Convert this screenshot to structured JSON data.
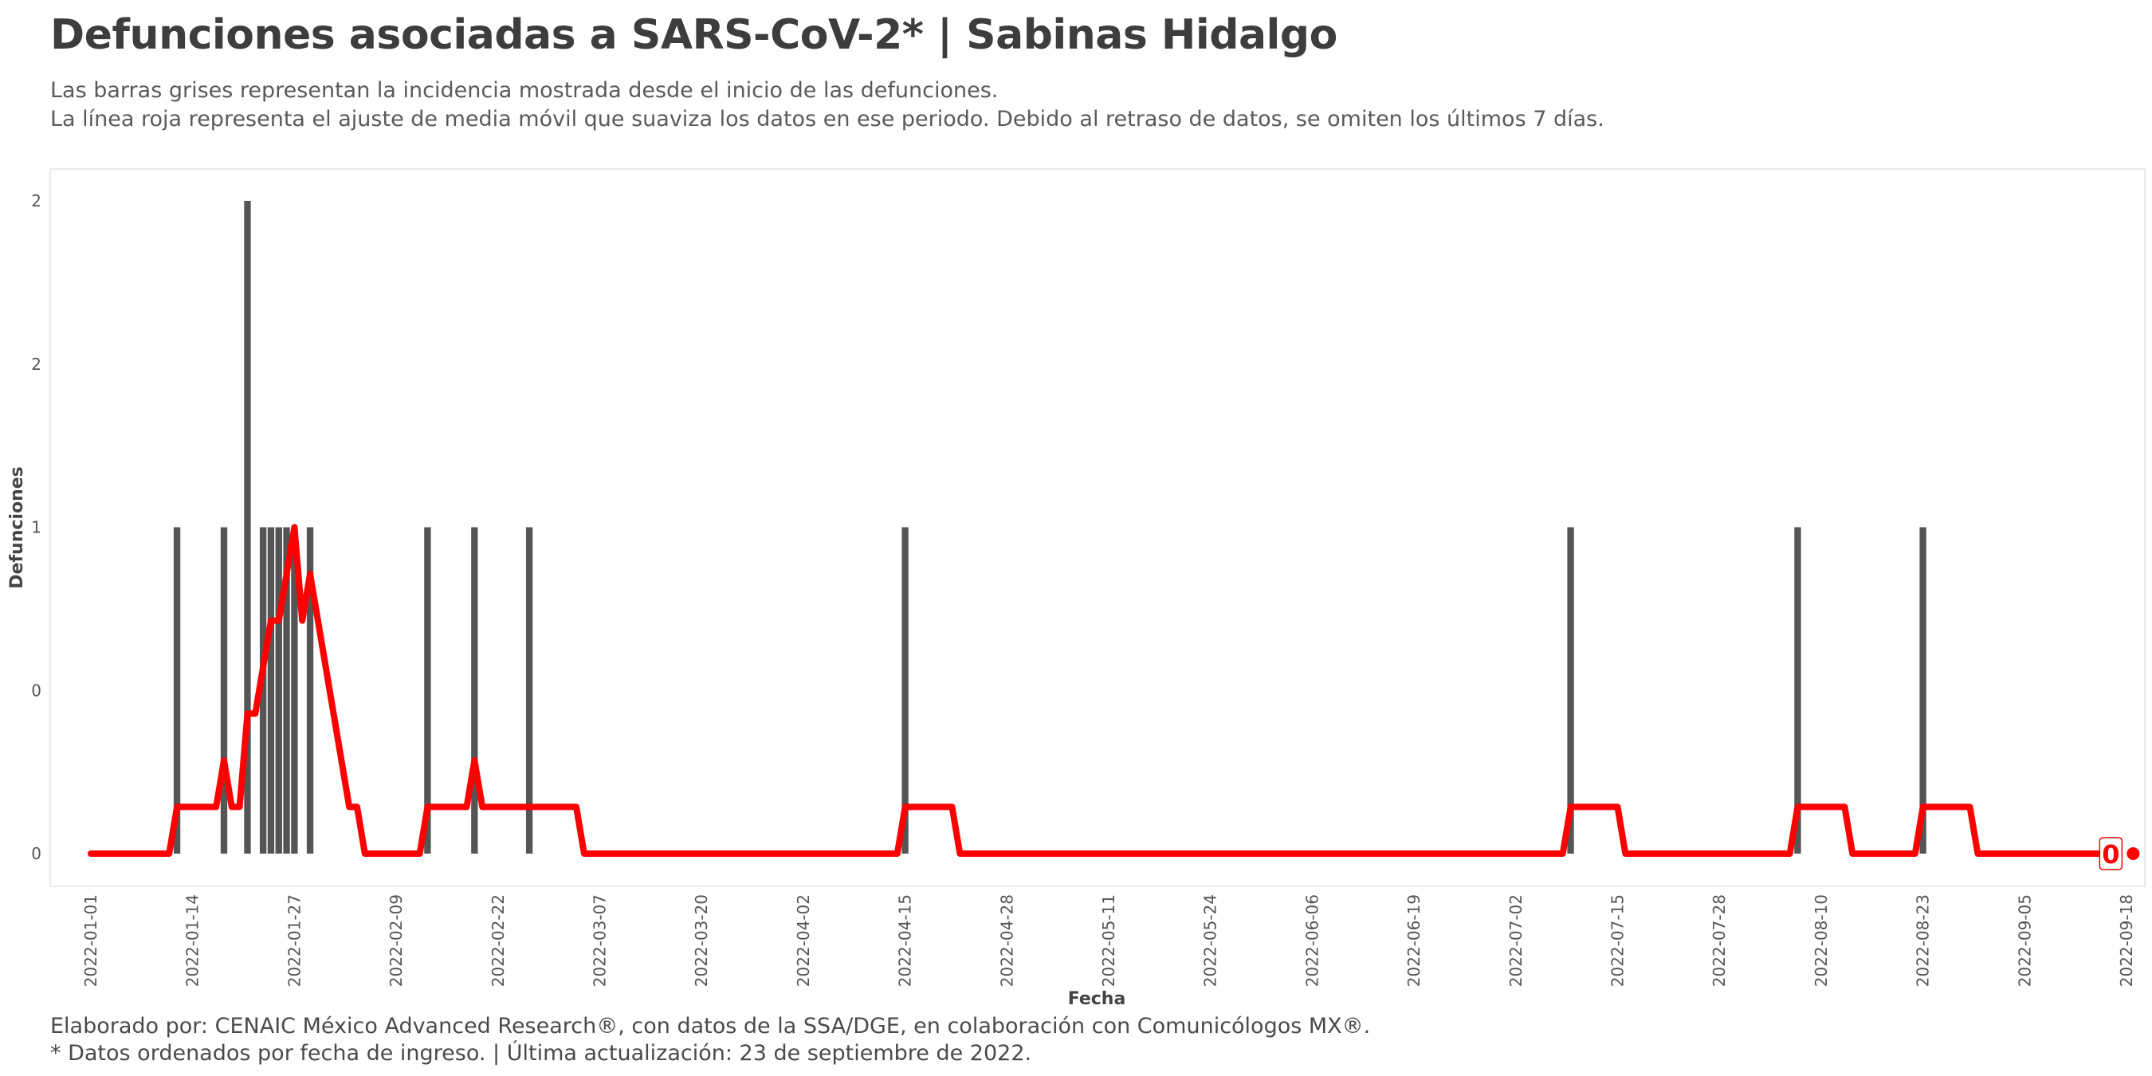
{
  "title": "Defunciones asociadas a SARS-CoV-2* | Sabinas Hidalgo",
  "subtitle_lines": [
    "Las barras grises representan la incidencia mostrada desde el inicio de las defunciones.",
    "La línea roja representa el ajuste de media móvil que suaviza los datos en ese periodo. Debido al retraso de datos, se omiten los últimos 7 días."
  ],
  "caption_lines": [
    "Elaborado por: CENAIC México Advanced Research®, con datos de la SSA/DGE, en colaboración con Comunicólogos MX®.",
    "* Datos ordenados por fecha de ingreso. | Última actualización: 23 de septiembre de 2022."
  ],
  "colors": {
    "bars": "#555555",
    "line": "#ff0000",
    "panel_border": "#e3e3e3"
  },
  "chart_data": {
    "type": "bar",
    "xlabel": "Fecha",
    "ylabel": "Defunciones",
    "x_range": [
      "2022-01-01",
      "2022-09-18"
    ],
    "ylim": [
      0,
      2.0
    ],
    "y_ticks": [
      0,
      0.5,
      1,
      1.5,
      2
    ],
    "y_tick_labels": [
      "0",
      "0",
      "1",
      "2",
      "2"
    ],
    "x_ticks": [
      "2022-01-01",
      "2022-01-14",
      "2022-01-27",
      "2022-02-09",
      "2022-02-22",
      "2022-03-07",
      "2022-03-20",
      "2022-04-02",
      "2022-04-15",
      "2022-04-28",
      "2022-05-11",
      "2022-05-24",
      "2022-06-06",
      "2022-06-19",
      "2022-07-02",
      "2022-07-15",
      "2022-07-28",
      "2022-08-10",
      "2022-08-23",
      "2022-09-05",
      "2022-09-18"
    ],
    "bars": [
      {
        "date": "2022-01-12",
        "value": 1
      },
      {
        "date": "2022-01-18",
        "value": 1
      },
      {
        "date": "2022-01-21",
        "value": 2
      },
      {
        "date": "2022-01-23",
        "value": 1
      },
      {
        "date": "2022-01-24",
        "value": 1
      },
      {
        "date": "2022-01-25",
        "value": 1
      },
      {
        "date": "2022-01-26",
        "value": 1
      },
      {
        "date": "2022-01-27",
        "value": 1
      },
      {
        "date": "2022-01-29",
        "value": 1
      },
      {
        "date": "2022-02-13",
        "value": 1
      },
      {
        "date": "2022-02-19",
        "value": 1
      },
      {
        "date": "2022-02-26",
        "value": 1
      },
      {
        "date": "2022-04-15",
        "value": 1
      },
      {
        "date": "2022-07-09",
        "value": 1
      },
      {
        "date": "2022-08-07",
        "value": 1
      },
      {
        "date": "2022-08-23",
        "value": 1
      }
    ],
    "moving_average": {
      "points": [
        [
          "2022-01-01",
          0
        ],
        [
          "2022-01-11",
          0
        ],
        [
          "2022-01-12",
          0.143
        ],
        [
          "2022-01-17",
          0.143
        ],
        [
          "2022-01-18",
          0.286
        ],
        [
          "2022-01-19",
          0.143
        ],
        [
          "2022-01-20",
          0.143
        ],
        [
          "2022-01-21",
          0.429
        ],
        [
          "2022-01-22",
          0.429
        ],
        [
          "2022-01-23",
          0.571
        ],
        [
          "2022-01-24",
          0.714
        ],
        [
          "2022-01-25",
          0.714
        ],
        [
          "2022-01-26",
          0.857
        ],
        [
          "2022-01-27",
          1.0
        ],
        [
          "2022-01-28",
          0.714
        ],
        [
          "2022-01-29",
          0.857
        ],
        [
          "2022-01-30",
          0.714
        ],
        [
          "2022-02-01",
          0.429
        ],
        [
          "2022-02-03",
          0.143
        ],
        [
          "2022-02-04",
          0.143
        ],
        [
          "2022-02-05",
          0
        ],
        [
          "2022-02-12",
          0
        ],
        [
          "2022-02-13",
          0.143
        ],
        [
          "2022-02-18",
          0.143
        ],
        [
          "2022-02-19",
          0.286
        ],
        [
          "2022-02-20",
          0.143
        ],
        [
          "2022-03-04",
          0.143
        ],
        [
          "2022-03-05",
          0
        ],
        [
          "2022-04-14",
          0
        ],
        [
          "2022-04-15",
          0.143
        ],
        [
          "2022-04-21",
          0.143
        ],
        [
          "2022-04-22",
          0
        ],
        [
          "2022-07-08",
          0
        ],
        [
          "2022-07-09",
          0.143
        ],
        [
          "2022-07-15",
          0.143
        ],
        [
          "2022-07-16",
          0
        ],
        [
          "2022-08-06",
          0
        ],
        [
          "2022-08-07",
          0.143
        ],
        [
          "2022-08-13",
          0.143
        ],
        [
          "2022-08-14",
          0
        ],
        [
          "2022-08-22",
          0
        ],
        [
          "2022-08-23",
          0.143
        ],
        [
          "2022-08-29",
          0.143
        ],
        [
          "2022-08-30",
          0
        ],
        [
          "2022-09-16",
          0
        ]
      ],
      "end_point": {
        "date": "2022-09-16",
        "value": 0
      },
      "end_label": "0"
    }
  }
}
